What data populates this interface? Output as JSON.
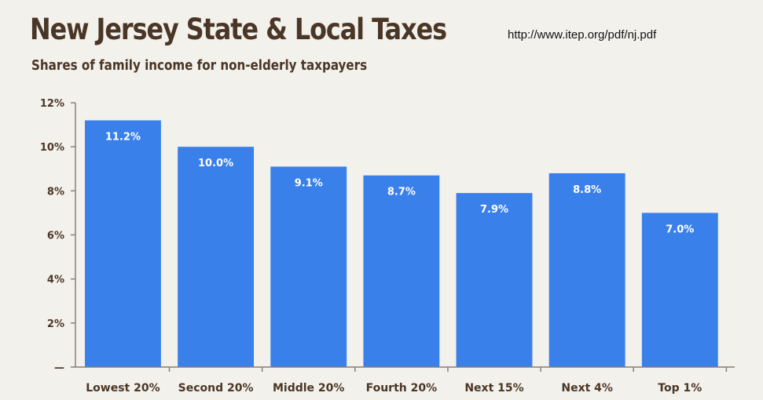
{
  "header": {
    "source_url": "http://www.itep.org/pdf/nj.pdf"
  },
  "chart_data": {
    "type": "bar",
    "title": "New Jersey State & Local Taxes",
    "subtitle": "Shares of family income for non-elderly taxpayers",
    "categories": [
      "Lowest 20%",
      "Second 20%",
      "Middle 20%",
      "Fourth 20%",
      "Next 15%",
      "Next 4%",
      "Top 1%"
    ],
    "values": [
      11.2,
      10.0,
      9.1,
      8.7,
      7.9,
      8.8,
      7.0
    ],
    "data_labels": [
      "11.2%",
      "10.0%",
      "9.1%",
      "8.7%",
      "7.9%",
      "8.8%",
      "7.0%"
    ],
    "ylim": [
      0,
      12
    ],
    "yticks": [
      0,
      2,
      4,
      6,
      8,
      10,
      12
    ],
    "ytick_labels": [
      "—",
      "2%",
      "4%",
      "6%",
      "8%",
      "10%",
      "12%"
    ],
    "xlabel": "",
    "ylabel": "",
    "grid": false,
    "bar_color": "#3a80ea",
    "text_color": "#4a3626"
  }
}
